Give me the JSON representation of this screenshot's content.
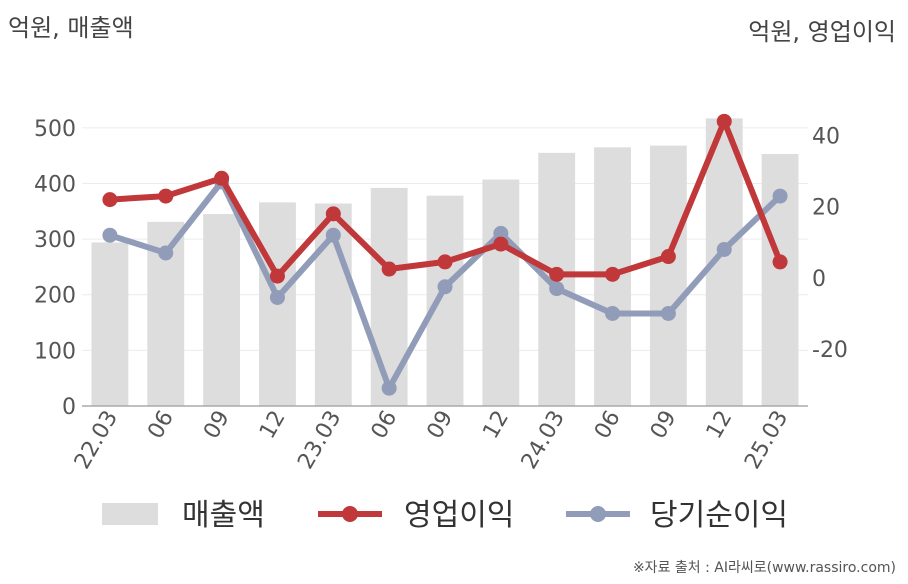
{
  "chart_data": {
    "type": "bar+line",
    "left_axis_title": "억원, 매출액",
    "right_axis_title": "억원, 영업이익",
    "categories": [
      "22.03",
      "06",
      "09",
      "12",
      "23.03",
      "06",
      "09",
      "12",
      "24.03",
      "06",
      "09",
      "12",
      "25.03"
    ],
    "left_ylim": [
      0,
      550
    ],
    "left_ticks": [
      0,
      100,
      200,
      300,
      400,
      500
    ],
    "right_ylim": [
      -36,
      50
    ],
    "right_ticks": [
      -20,
      0,
      20,
      40
    ],
    "right_tick_labels": [
      "-20",
      "0",
      "20",
      "40"
    ],
    "series": [
      {
        "name": "매출액",
        "kind": "bar",
        "axis": "left",
        "color": "#dddddd",
        "values": [
          294,
          331,
          345,
          366,
          364,
          392,
          378,
          407,
          455,
          465,
          468,
          517,
          453
        ]
      },
      {
        "name": "영업이익",
        "kind": "line",
        "axis": "right",
        "color": "#c0383a",
        "values": [
          22,
          23,
          28,
          0.5,
          18,
          2.5,
          4.5,
          9.5,
          1,
          1,
          6,
          44,
          4.5
        ]
      },
      {
        "name": "당기순이익",
        "kind": "line",
        "axis": "right",
        "color": "#919db8",
        "values": [
          12,
          7,
          27,
          -5.5,
          12,
          -31,
          -2.5,
          12.5,
          -3,
          -10,
          -10,
          8,
          23
        ]
      }
    ],
    "grid": true,
    "legend_position": "bottom",
    "source_note": "※자료 출처 : AI라씨로(www.rassiro.com)"
  }
}
